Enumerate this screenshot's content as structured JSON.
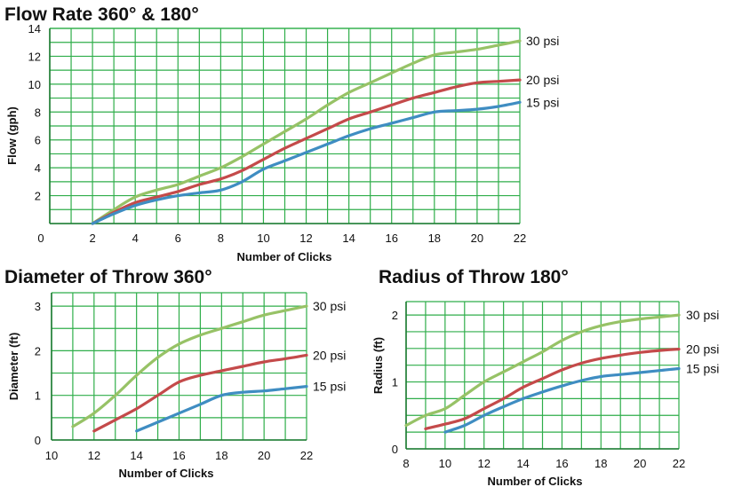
{
  "colors": {
    "grid": "#2FAE4A",
    "series": {
      "30 psi": "#97C266",
      "20 psi": "#C44A4A",
      "15 psi": "#3F8DC2"
    }
  },
  "chart_data": [
    {
      "id": "flow",
      "type": "line",
      "title": "Flow Rate 360° & 180°",
      "xlabel": "Number of Clicks",
      "ylabel": "Flow (gph)",
      "xlim": [
        0,
        22
      ],
      "ylim": [
        0,
        14
      ],
      "x_grid_step": 1,
      "y_grid_step": 1,
      "x_ticks": [
        2,
        4,
        6,
        8,
        10,
        12,
        14,
        16,
        18,
        20,
        22
      ],
      "x_tick_labels": [
        "2",
        "4",
        "6",
        "8",
        "10",
        "12",
        "14",
        "16",
        "18",
        "20",
        "22"
      ],
      "x_origin_label": "0",
      "y_ticks": [
        2,
        4,
        6,
        8,
        10,
        12,
        14
      ],
      "y_tick_labels": [
        "2",
        "4",
        "6",
        "8",
        "10",
        "12",
        "14"
      ],
      "series": [
        {
          "name": "30 psi",
          "label": "30 psi",
          "x": [
            2,
            3,
            4,
            5,
            6,
            7,
            8,
            9,
            10,
            11,
            12,
            13,
            14,
            15,
            16,
            17,
            18,
            19,
            20,
            21,
            22
          ],
          "y": [
            0,
            1.0,
            1.9,
            2.4,
            2.8,
            3.4,
            4.0,
            4.8,
            5.7,
            6.6,
            7.5,
            8.5,
            9.4,
            10.1,
            10.8,
            11.5,
            12.1,
            12.3,
            12.5,
            12.8,
            13.1
          ]
        },
        {
          "name": "20 psi",
          "label": "20 psi",
          "x": [
            2,
            3,
            4,
            5,
            6,
            7,
            8,
            9,
            10,
            11,
            12,
            13,
            14,
            15,
            16,
            17,
            18,
            19,
            20,
            21,
            22
          ],
          "y": [
            0,
            0.8,
            1.5,
            1.9,
            2.3,
            2.8,
            3.2,
            3.8,
            4.6,
            5.4,
            6.1,
            6.8,
            7.5,
            8.0,
            8.5,
            9.0,
            9.4,
            9.8,
            10.1,
            10.2,
            10.3
          ]
        },
        {
          "name": "15 psi",
          "label": "15 psi",
          "x": [
            2,
            3,
            4,
            5,
            6,
            7,
            8,
            9,
            10,
            11,
            12,
            13,
            14,
            15,
            16,
            17,
            18,
            19,
            20,
            21,
            22
          ],
          "y": [
            0,
            0.7,
            1.3,
            1.7,
            2.0,
            2.2,
            2.4,
            3.0,
            3.9,
            4.5,
            5.1,
            5.7,
            6.3,
            6.8,
            7.2,
            7.6,
            8.0,
            8.1,
            8.2,
            8.4,
            8.7
          ]
        }
      ]
    },
    {
      "id": "diameter",
      "type": "line",
      "title": "Diameter of Throw 360°",
      "xlabel": "Number of Clicks",
      "ylabel": "Diameter (ft)",
      "xlim": [
        10,
        22
      ],
      "ylim": [
        0,
        3.3
      ],
      "x_grid_step": 1,
      "y_grid_step": 0.5,
      "x_ticks": [
        10,
        12,
        14,
        16,
        18,
        20,
        22
      ],
      "x_tick_labels": [
        "10",
        "12",
        "14",
        "16",
        "18",
        "20",
        "22"
      ],
      "y_ticks": [
        0,
        1,
        2,
        3
      ],
      "y_tick_labels": [
        "0",
        "1",
        "2",
        "3"
      ],
      "series": [
        {
          "name": "30 psi",
          "label": "30 psi",
          "x": [
            11,
            12,
            13,
            14,
            15,
            16,
            17,
            18,
            19,
            20,
            21,
            22
          ],
          "y": [
            0.3,
            0.6,
            1.0,
            1.45,
            1.85,
            2.15,
            2.35,
            2.5,
            2.65,
            2.8,
            2.9,
            3.0
          ]
        },
        {
          "name": "20 psi",
          "label": "20 psi",
          "x": [
            12,
            13,
            14,
            15,
            16,
            17,
            18,
            19,
            20,
            21,
            22
          ],
          "y": [
            0.2,
            0.45,
            0.7,
            1.0,
            1.3,
            1.45,
            1.55,
            1.65,
            1.75,
            1.82,
            1.9
          ]
        },
        {
          "name": "15 psi",
          "label": "15 psi",
          "x": [
            14,
            15,
            16,
            17,
            18,
            19,
            20,
            21,
            22
          ],
          "y": [
            0.2,
            0.4,
            0.6,
            0.8,
            1.0,
            1.07,
            1.1,
            1.15,
            1.2
          ]
        }
      ]
    },
    {
      "id": "radius",
      "type": "line",
      "title": "Radius of Throw 180°",
      "xlabel": "Number of Clicks",
      "ylabel": "Radius (ft)",
      "xlim": [
        8,
        22
      ],
      "ylim": [
        0,
        2.2
      ],
      "x_grid_step": 1,
      "y_grid_step": 0.25,
      "x_ticks": [
        8,
        10,
        12,
        14,
        16,
        18,
        20,
        22
      ],
      "x_tick_labels": [
        "8",
        "10",
        "12",
        "14",
        "16",
        "18",
        "20",
        "22"
      ],
      "y_ticks": [
        0,
        1,
        2
      ],
      "y_tick_labels": [
        "0",
        "1",
        "2"
      ],
      "series": [
        {
          "name": "30 psi",
          "label": "30 psi",
          "x": [
            8,
            9,
            10,
            11,
            12,
            13,
            14,
            15,
            16,
            17,
            18,
            19,
            20,
            21,
            22
          ],
          "y": [
            0.35,
            0.5,
            0.6,
            0.8,
            1.0,
            1.15,
            1.3,
            1.45,
            1.62,
            1.75,
            1.84,
            1.9,
            1.94,
            1.97,
            2.0
          ]
        },
        {
          "name": "20 psi",
          "label": "20 psi",
          "x": [
            9,
            10,
            11,
            12,
            13,
            14,
            15,
            16,
            17,
            18,
            19,
            20,
            21,
            22
          ],
          "y": [
            0.3,
            0.37,
            0.45,
            0.6,
            0.75,
            0.92,
            1.05,
            1.18,
            1.28,
            1.35,
            1.4,
            1.44,
            1.47,
            1.49
          ]
        },
        {
          "name": "15 psi",
          "label": "15 psi",
          "x": [
            10,
            11,
            12,
            13,
            14,
            15,
            16,
            17,
            18,
            19,
            20,
            21,
            22
          ],
          "y": [
            0.25,
            0.35,
            0.5,
            0.63,
            0.75,
            0.85,
            0.94,
            1.02,
            1.08,
            1.11,
            1.14,
            1.17,
            1.2
          ]
        }
      ]
    }
  ]
}
